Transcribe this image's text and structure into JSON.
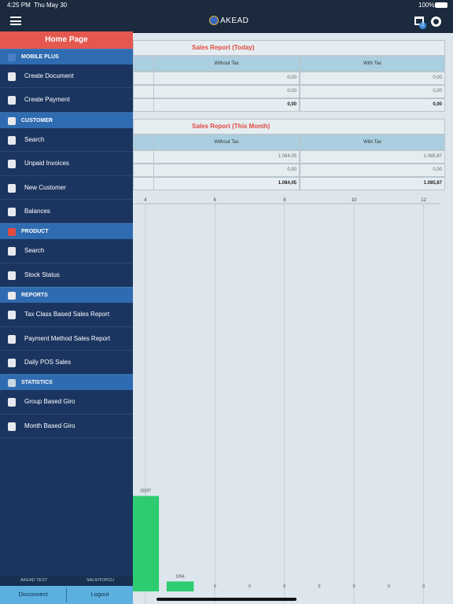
{
  "status_bar": {
    "time": "4:25 PM",
    "date": "Thu May 30",
    "battery": "100%"
  },
  "nav_bar": {
    "logo": "AKEAD",
    "cart_count": "2"
  },
  "menu": {
    "title": "Home Page",
    "sections": [
      {
        "title": "MOBILE PLUS",
        "items": [
          "Create Document",
          "Create Payment"
        ]
      },
      {
        "title": "CUSTOMER",
        "items": [
          "Search",
          "Unpaid Invoices",
          "New Customer",
          "Balances"
        ]
      },
      {
        "title": "PRODUCT",
        "items": [
          "Search",
          "Stock Status"
        ]
      },
      {
        "title": "REPORTS",
        "items": [
          "Tax Class Based Sales Report",
          "Payment Method Sales Report",
          "Daily POS Sales"
        ]
      },
      {
        "title": "STATISTICS",
        "items": [
          "Group Based Giro",
          "Month Based Giro"
        ]
      }
    ],
    "footer": {
      "company": "AKEAD TEST",
      "user": "SALIHTOPCU",
      "buttons": [
        "Disconnect",
        "Logout"
      ]
    }
  },
  "reports": [
    {
      "title": "Sales Report (Today)",
      "columns": [
        "Without Tax",
        "With Tax"
      ],
      "rows": [
        [
          "0,00",
          "0,00"
        ],
        [
          "0,00",
          "0,00"
        ],
        [
          "0,00",
          "0,00"
        ]
      ]
    },
    {
      "title": "Sales Report (This Month)",
      "columns": [
        "Without Tax",
        "With Tax"
      ],
      "rows": [
        [
          "1.084,05",
          "1.085,87"
        ],
        [
          "0,00",
          "0,00"
        ],
        [
          "1.084,05",
          "1.085,87"
        ]
      ]
    }
  ],
  "chart_data": {
    "type": "bar",
    "x": [
      4,
      5,
      6,
      7,
      8,
      9,
      10,
      11,
      12
    ],
    "values": [
      10197,
      1064,
      0,
      0,
      0,
      0,
      0,
      0,
      0
    ],
    "xlim": [
      0,
      12.8
    ],
    "xticks": [
      4,
      6,
      8,
      10,
      12
    ],
    "ylim": [
      0,
      42000
    ],
    "color": "#2ecc71",
    "grid": true
  }
}
